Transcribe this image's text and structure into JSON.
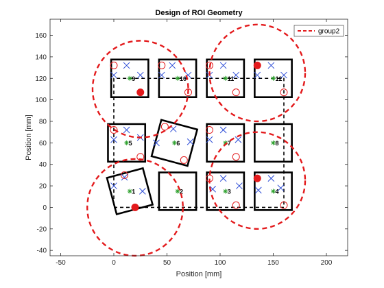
{
  "chart_data": {
    "type": "scatter",
    "title": "Design of ROI Geometry",
    "xlabel": "Position [mm]",
    "ylabel": "Position [mm]",
    "xlim": [
      -60,
      220
    ],
    "ylim": [
      -45,
      175
    ],
    "xticks": [
      -50,
      0,
      50,
      100,
      150,
      200
    ],
    "yticks": [
      -40,
      -20,
      0,
      20,
      40,
      60,
      80,
      100,
      120,
      140,
      160
    ],
    "legend": {
      "position": "top-right",
      "entries": [
        {
          "name": "group2",
          "color": "#e31a1c",
          "style": "dashed"
        }
      ]
    },
    "colors": {
      "box": "#000000",
      "circle": "#e31a1c",
      "cross": "#2b4bd6",
      "star": "#2ca02c",
      "dashed_outline": "#000000"
    },
    "dashed_outline": [
      [
        0,
        0
      ],
      [
        160,
        0
      ],
      [
        160,
        120
      ],
      [
        0,
        120
      ],
      [
        0,
        0
      ]
    ],
    "group_circles": [
      {
        "cx": 20,
        "cy": 0,
        "r": 45
      },
      {
        "cx": 25,
        "cy": 110,
        "r": 45
      },
      {
        "cx": 135,
        "cy": 125,
        "r": 45
      },
      {
        "cx": 135,
        "cy": 25,
        "r": 45
      }
    ],
    "rois": [
      {
        "id": "1",
        "cx": 15,
        "cy": 15,
        "angle": -15,
        "hollow": [
          [
            10,
            30
          ]
        ],
        "filled": [
          [
            20,
            0
          ]
        ],
        "crosses": [
          [
            0,
            20
          ],
          [
            10,
            28
          ],
          [
            27,
            15
          ]
        ]
      },
      {
        "id": "2",
        "cx": 60,
        "cy": 15,
        "angle": 0,
        "hollow": [],
        "filled": [],
        "crosses": []
      },
      {
        "id": "3",
        "cx": 105,
        "cy": 15,
        "angle": 0,
        "hollow": [
          [
            90,
            27
          ],
          [
            115,
            2
          ]
        ],
        "filled": [],
        "crosses": [
          [
            93,
            17
          ],
          [
            103,
            27
          ],
          [
            118,
            20
          ]
        ]
      },
      {
        "id": "4",
        "cx": 150,
        "cy": 15,
        "angle": 0,
        "hollow": [
          [
            160,
            2
          ]
        ],
        "filled": [
          [
            135,
            27
          ]
        ],
        "crosses": [
          [
            136,
            16
          ],
          [
            148,
            27
          ],
          [
            157,
            18
          ]
        ]
      },
      {
        "id": "5",
        "cx": 12,
        "cy": 60,
        "angle": 0,
        "hollow": [
          [
            0,
            72
          ],
          [
            25,
            47
          ]
        ],
        "filled": [],
        "crosses": [
          [
            0,
            63
          ],
          [
            12,
            72
          ],
          [
            25,
            65
          ]
        ]
      },
      {
        "id": "6",
        "cx": 57,
        "cy": 60,
        "angle": 15,
        "hollow": [
          [
            48,
            75
          ],
          [
            66,
            44
          ]
        ],
        "filled": [],
        "crosses": [
          [
            40,
            60
          ],
          [
            56,
            73
          ],
          [
            72,
            61
          ]
        ]
      },
      {
        "id": "7",
        "cx": 105,
        "cy": 60,
        "angle": 0,
        "hollow": [
          [
            90,
            72
          ],
          [
            115,
            47
          ]
        ],
        "filled": [],
        "crosses": [
          [
            90,
            63
          ],
          [
            103,
            72
          ],
          [
            117,
            63
          ]
        ]
      },
      {
        "id": "8",
        "cx": 150,
        "cy": 60,
        "angle": 0,
        "hollow": [],
        "filled": [],
        "crosses": []
      },
      {
        "id": "9",
        "cx": 15,
        "cy": 120,
        "angle": 0,
        "hollow": [
          [
            0,
            132
          ]
        ],
        "filled": [
          [
            25,
            107
          ]
        ],
        "crosses": [
          [
            0,
            123
          ],
          [
            12,
            132
          ],
          [
            25,
            123
          ]
        ]
      },
      {
        "id": "10",
        "cx": 60,
        "cy": 120,
        "angle": 0,
        "hollow": [
          [
            45,
            132
          ],
          [
            70,
            107
          ]
        ],
        "filled": [],
        "crosses": [
          [
            45,
            123
          ],
          [
            55,
            132
          ],
          [
            70,
            123
          ]
        ]
      },
      {
        "id": "11",
        "cx": 105,
        "cy": 120,
        "angle": 0,
        "hollow": [
          [
            90,
            132
          ],
          [
            115,
            107
          ]
        ],
        "filled": [],
        "crosses": [
          [
            90,
            123
          ],
          [
            103,
            132
          ],
          [
            115,
            123
          ]
        ]
      },
      {
        "id": "12",
        "cx": 150,
        "cy": 120,
        "angle": 0,
        "hollow": [
          [
            160,
            107
          ]
        ],
        "filled": [
          [
            135,
            132
          ]
        ],
        "crosses": [
          [
            135,
            123
          ],
          [
            148,
            132
          ],
          [
            160,
            123
          ]
        ]
      }
    ]
  }
}
